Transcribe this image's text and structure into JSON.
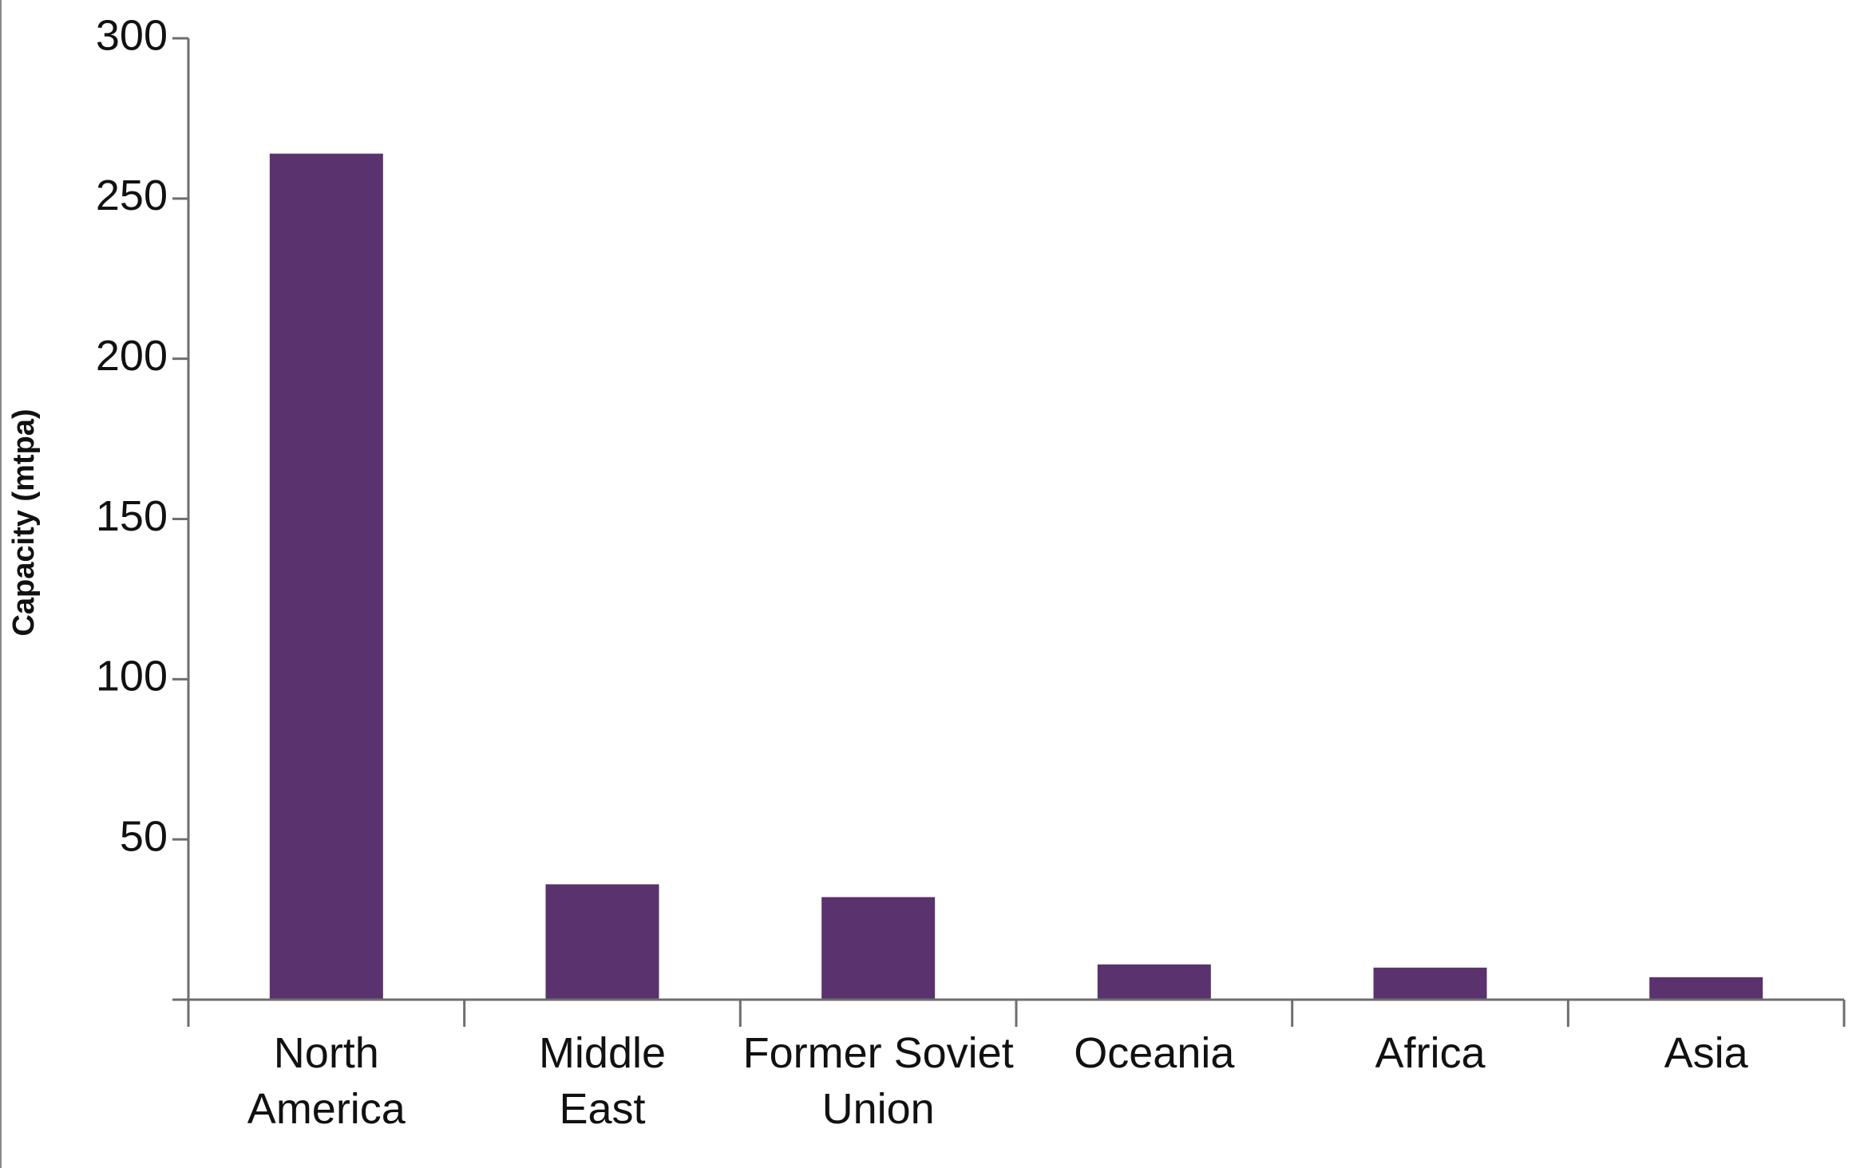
{
  "chart_data": {
    "type": "bar",
    "categories": [
      [
        "North",
        "America"
      ],
      [
        "Middle",
        "East"
      ],
      [
        "Former Soviet",
        "Union"
      ],
      [
        "Oceania"
      ],
      [
        "Africa"
      ],
      [
        "Asia"
      ]
    ],
    "values": [
      264,
      36,
      32,
      11,
      10,
      7
    ],
    "ylabel": "Capacity (mtpa)",
    "ylim": [
      0,
      300
    ],
    "yticks": [
      {
        "value": 50,
        "label": "50"
      },
      {
        "value": 100,
        "label": "100"
      },
      {
        "value": 150,
        "label": "150"
      },
      {
        "value": 200,
        "label": "200"
      },
      {
        "value": 250,
        "label": "250"
      },
      {
        "value": 300,
        "label": "300"
      }
    ],
    "grid": false,
    "colors": {
      "bar": "#59326e",
      "axis": "#6e6e6e"
    }
  }
}
